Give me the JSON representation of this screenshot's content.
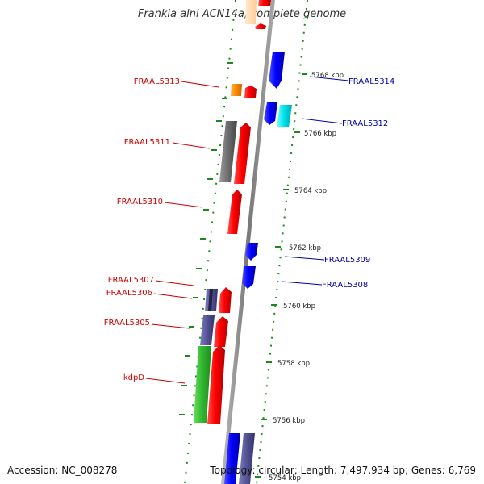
{
  "title": "Frankia alni ACN14a, complete genome",
  "footer": {
    "accession": "Accession: NC_008278",
    "topology": "Topology: circular; Length: 7,497,934 bp; Genes: 6,769"
  },
  "colors": {
    "forward_label": "#cc0000",
    "reverse_label": "#0000aa",
    "backbone": "#888888",
    "tick": "#1a8a1a"
  },
  "ticks": [
    {
      "label": "5768 kbp"
    },
    {
      "label": "5766 kbp"
    },
    {
      "label": "5764 kbp"
    },
    {
      "label": "5762 kbp"
    },
    {
      "label": "5760 kbp"
    },
    {
      "label": "5758 kbp"
    },
    {
      "label": "5756 kbp"
    },
    {
      "label": "5754 kbp"
    }
  ],
  "gene_labels": [
    {
      "label": "FRAAL5313",
      "strand": "forward"
    },
    {
      "label": "FRAAL5314",
      "strand": "reverse"
    },
    {
      "label": "FRAAL5312",
      "strand": "reverse"
    },
    {
      "label": "FRAAL5311",
      "strand": "forward"
    },
    {
      "label": "FRAAL5310",
      "strand": "forward"
    },
    {
      "label": "FRAAL5309",
      "strand": "reverse"
    },
    {
      "label": "FRAAL5308",
      "strand": "reverse"
    },
    {
      "label": "FRAAL5307",
      "strand": "forward"
    },
    {
      "label": "FRAAL5306",
      "strand": "forward"
    },
    {
      "label": "FRAAL5305",
      "strand": "forward"
    },
    {
      "label": "kdpD",
      "strand": "forward"
    }
  ]
}
